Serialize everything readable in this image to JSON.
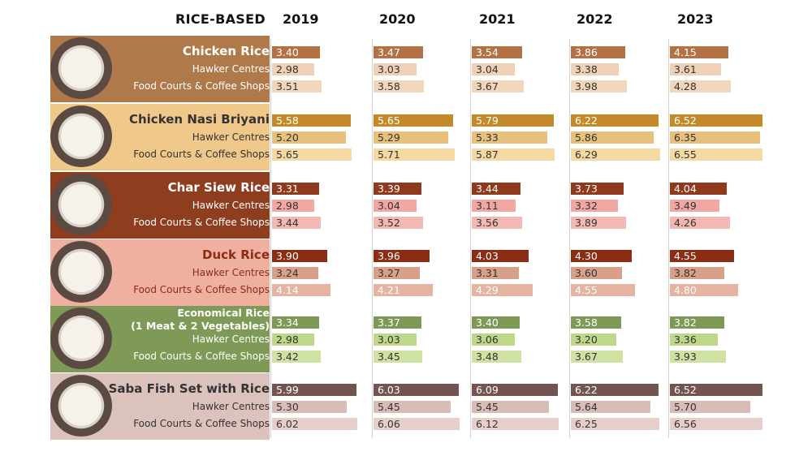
{
  "header": {
    "title": "RICE-BASED",
    "years": [
      "2019",
      "2020",
      "2021",
      "2022",
      "2023"
    ]
  },
  "colors": {
    "chicken_rice": {
      "band": "#b0794a",
      "label": "#ffffff",
      "sub_label": "#ffffff",
      "bars": [
        "#b37144",
        "#eed1b6",
        "#f1d6bb"
      ],
      "text": [
        "#ffffff",
        "#333333",
        "#333333"
      ]
    },
    "nasi_briyani": {
      "band": "#f0c98a",
      "label": "#333333",
      "sub_label": "#333333",
      "bars": [
        "#c48a2a",
        "#e7c07c",
        "#f5d9a2"
      ],
      "text": [
        "#ffffff",
        "#333333",
        "#333333"
      ]
    },
    "char_siew": {
      "band": "#8f3d1f",
      "label": "#ffffff",
      "sub_label": "#ffffff",
      "bars": [
        "#8f3a1d",
        "#f1a7a2",
        "#f4b8b3"
      ],
      "text": [
        "#ffffff",
        "#333333",
        "#333333"
      ]
    },
    "duck_rice": {
      "band": "#f0b0a0",
      "label": "#8a2d14",
      "sub_label": "#8a2d14",
      "bars": [
        "#8a2d14",
        "#d9a089",
        "#e6b3a0"
      ],
      "text": [
        "#ffffff",
        "#333333",
        "#ffffff"
      ]
    },
    "economical": {
      "band": "#7e9a56",
      "label": "#ffffff",
      "sub_label": "#ffffff",
      "bars": [
        "#7e9856",
        "#bfd78a",
        "#cfe2a2"
      ],
      "text": [
        "#ffffff",
        "#333333",
        "#333333"
      ]
    },
    "saba_fish": {
      "band": "#dcc2bc",
      "label": "#333333",
      "sub_label": "#333333",
      "bars": [
        "#735450",
        "#d8bdb7",
        "#e6cfca"
      ],
      "text": [
        "#ffffff",
        "#333333",
        "#333333"
      ]
    }
  },
  "chart_data": {
    "type": "bar",
    "title": "RICE-BASED",
    "categories": [
      "2019",
      "2020",
      "2021",
      "2022",
      "2023"
    ],
    "x_range": [
      0,
      6.6
    ],
    "groups": [
      {
        "key": "chicken_rice",
        "name": "Chicken Rice",
        "series": [
          {
            "name": "Chicken Rice",
            "values": [
              3.4,
              3.47,
              3.54,
              3.86,
              4.15
            ]
          },
          {
            "name": "Hawker Centres",
            "values": [
              2.98,
              3.03,
              3.04,
              3.38,
              3.61
            ]
          },
          {
            "name": "Food Courts & Coffee Shops",
            "values": [
              3.51,
              3.58,
              3.67,
              3.98,
              4.28
            ]
          }
        ]
      },
      {
        "key": "nasi_briyani",
        "name": "Chicken Nasi Briyani",
        "series": [
          {
            "name": "Chicken Nasi Briyani",
            "values": [
              5.58,
              5.65,
              5.79,
              6.22,
              6.52
            ]
          },
          {
            "name": "Hawker Centres",
            "values": [
              5.2,
              5.29,
              5.33,
              5.86,
              6.35
            ]
          },
          {
            "name": "Food Courts & Coffee Shops",
            "values": [
              5.65,
              5.71,
              5.87,
              6.29,
              6.55
            ]
          }
        ]
      },
      {
        "key": "char_siew",
        "name": "Char Siew Rice",
        "series": [
          {
            "name": "Char Siew Rice",
            "values": [
              3.31,
              3.39,
              3.44,
              3.73,
              4.04
            ]
          },
          {
            "name": "Hawker Centres",
            "values": [
              2.98,
              3.04,
              3.11,
              3.32,
              3.49
            ]
          },
          {
            "name": "Food Courts & Coffee Shops",
            "values": [
              3.44,
              3.52,
              3.56,
              3.89,
              4.26
            ]
          }
        ]
      },
      {
        "key": "duck_rice",
        "name": "Duck Rice",
        "series": [
          {
            "name": "Duck Rice",
            "values": [
              3.9,
              3.96,
              4.03,
              4.3,
              4.55
            ]
          },
          {
            "name": "Hawker Centres",
            "values": [
              3.24,
              3.27,
              3.31,
              3.6,
              3.82
            ]
          },
          {
            "name": "Food Courts & Coffee Shops",
            "values": [
              4.14,
              4.21,
              4.29,
              4.55,
              4.8
            ]
          }
        ]
      },
      {
        "key": "economical",
        "name": "Economical Rice\n(1 Meat & 2 Vegetables)",
        "series": [
          {
            "name": "Economical Rice (1 Meat & 2 Vegetables)",
            "values": [
              3.34,
              3.37,
              3.4,
              3.58,
              3.82
            ]
          },
          {
            "name": "Hawker Centres",
            "values": [
              2.98,
              3.03,
              3.06,
              3.2,
              3.36
            ]
          },
          {
            "name": "Food Courts & Coffee Shops",
            "values": [
              3.42,
              3.45,
              3.48,
              3.67,
              3.93
            ]
          }
        ]
      },
      {
        "key": "saba_fish",
        "name": "Saba Fish Set with Rice",
        "series": [
          {
            "name": "Saba Fish Set with Rice",
            "values": [
              5.99,
              6.03,
              6.09,
              6.22,
              6.52
            ]
          },
          {
            "name": "Hawker Centres",
            "values": [
              5.3,
              5.45,
              5.45,
              5.64,
              5.7
            ]
          },
          {
            "name": "Food Courts & Coffee Shops",
            "values": [
              6.02,
              6.06,
              6.12,
              6.25,
              6.56
            ]
          }
        ]
      }
    ]
  }
}
